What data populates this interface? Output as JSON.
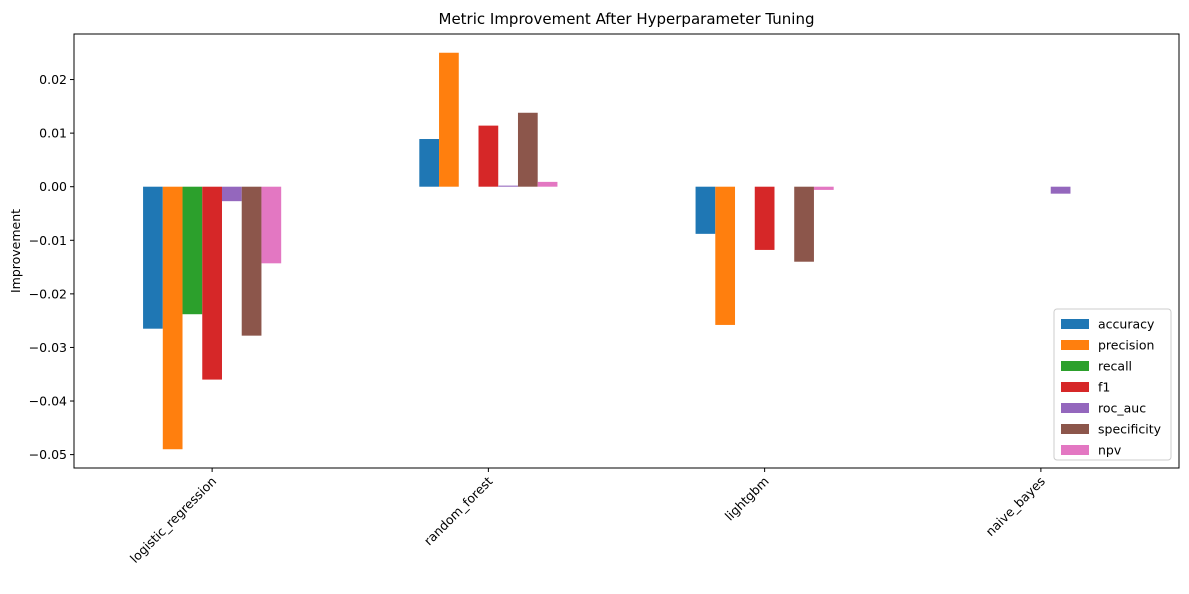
{
  "chart_data": {
    "type": "bar",
    "title": "Metric Improvement After Hyperparameter Tuning",
    "xlabel": "",
    "ylabel": "Improvement",
    "categories": [
      "logistic_regression",
      "random_forest",
      "lightgbm",
      "naive_bayes"
    ],
    "ylim": [
      -0.0525,
      0.0285
    ],
    "yticks": [
      -0.05,
      -0.04,
      -0.03,
      -0.02,
      -0.01,
      0.0,
      0.01,
      0.02
    ],
    "ytick_labels": [
      "−0.05",
      "−0.04",
      "−0.03",
      "−0.02",
      "−0.01",
      "0.00",
      "0.01",
      "0.02"
    ],
    "grid": false,
    "legend_position": "bottom-right",
    "series": [
      {
        "name": "accuracy",
        "color": "#1f77b4",
        "values": [
          -0.0265,
          0.0089,
          -0.0088,
          0.0
        ]
      },
      {
        "name": "precision",
        "color": "#ff7f0e",
        "values": [
          -0.049,
          0.025,
          -0.0258,
          0.0
        ]
      },
      {
        "name": "recall",
        "color": "#2ca02c",
        "values": [
          -0.0238,
          0.0,
          0.0,
          0.0
        ]
      },
      {
        "name": "f1",
        "color": "#d62728",
        "values": [
          -0.036,
          0.0114,
          -0.0118,
          0.0
        ]
      },
      {
        "name": "roc_auc",
        "color": "#9467bd",
        "values": [
          -0.0027,
          0.0002,
          0.0,
          -0.0013
        ]
      },
      {
        "name": "specificity",
        "color": "#8c564b",
        "values": [
          -0.0278,
          0.0138,
          -0.014,
          0.0
        ]
      },
      {
        "name": "npv",
        "color": "#e377c2",
        "values": [
          -0.0143,
          0.0009,
          -0.0006,
          0.0
        ]
      }
    ]
  }
}
